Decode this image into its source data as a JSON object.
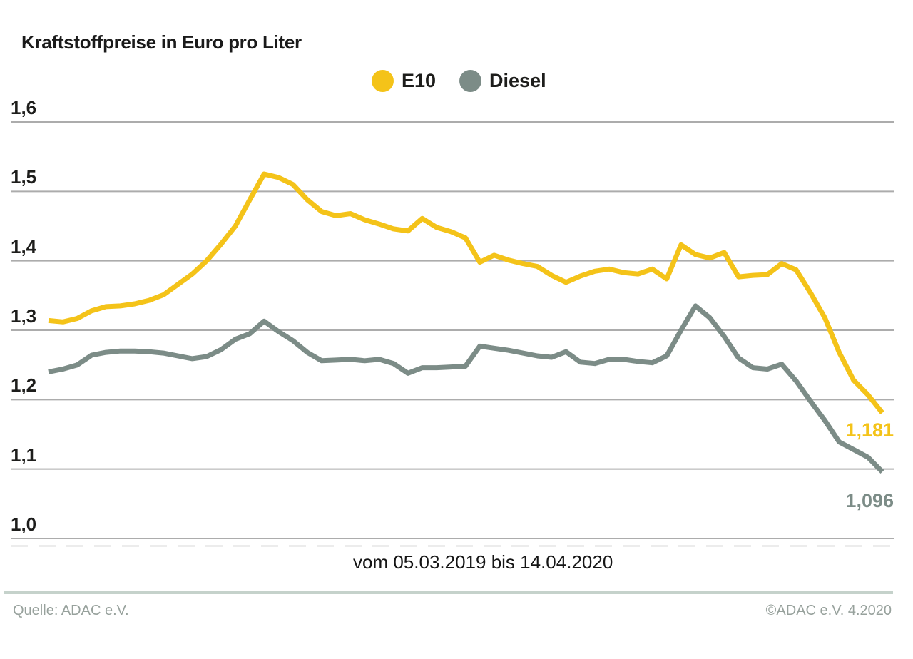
{
  "title": "Kraftstoffpreise in Euro pro Liter",
  "caption": "vom 05.03.2019 bis 14.04.2020",
  "footer": {
    "source": "Quelle: ADAC e.V.",
    "copyright": "©ADAC e.V. 4.2020"
  },
  "colors": {
    "e10": "#F4C319",
    "diesel": "#7C8C87",
    "gridline": "#ACACAC",
    "tick_dashes": "#E6E6E6",
    "text_dark": "#1d1d1b",
    "footer_bar": "#C5D2CB",
    "footer_text": "#97A19C",
    "background": "#FFFFFF"
  },
  "chart_data": {
    "type": "line",
    "title": "Kraftstoffpreise in Euro pro Liter",
    "xlabel": "vom 05.03.2019 bis 14.04.2020",
    "ylabel": "Euro pro Liter",
    "x_start": "05.03.2019",
    "x_end": "14.04.2020",
    "x_interval": "weekly",
    "ylim": [
      1.0,
      1.6
    ],
    "y_ticks": [
      "1,0",
      "1,1",
      "1,2",
      "1,3",
      "1,4",
      "1,5",
      "1,6"
    ],
    "y_tick_values": [
      1.0,
      1.1,
      1.2,
      1.3,
      1.4,
      1.5,
      1.6
    ],
    "grid": "horizontal",
    "legend_position": "top-center",
    "series": [
      {
        "name": "E10",
        "color": "#F4C319",
        "end_label": "1,181",
        "final_value": 1.181,
        "values": [
          1.314,
          1.312,
          1.317,
          1.328,
          1.334,
          1.335,
          1.338,
          1.343,
          1.351,
          1.366,
          1.381,
          1.4,
          1.424,
          1.45,
          1.488,
          1.525,
          1.52,
          1.51,
          1.488,
          1.471,
          1.465,
          1.468,
          1.459,
          1.453,
          1.446,
          1.443,
          1.461,
          1.448,
          1.442,
          1.433,
          1.398,
          1.408,
          1.401,
          1.396,
          1.392,
          1.379,
          1.369,
          1.378,
          1.385,
          1.388,
          1.383,
          1.381,
          1.388,
          1.374,
          1.423,
          1.409,
          1.404,
          1.412,
          1.377,
          1.379,
          1.38,
          1.396,
          1.387,
          1.354,
          1.318,
          1.268,
          1.228,
          1.207,
          1.181
        ]
      },
      {
        "name": "Diesel",
        "color": "#7C8C87",
        "end_label": "1,096",
        "final_value": 1.096,
        "values": [
          1.24,
          1.244,
          1.25,
          1.264,
          1.268,
          1.27,
          1.27,
          1.269,
          1.267,
          1.263,
          1.259,
          1.262,
          1.272,
          1.287,
          1.295,
          1.313,
          1.298,
          1.285,
          1.268,
          1.256,
          1.257,
          1.258,
          1.256,
          1.258,
          1.252,
          1.238,
          1.246,
          1.246,
          1.247,
          1.248,
          1.277,
          1.274,
          1.271,
          1.267,
          1.263,
          1.261,
          1.269,
          1.254,
          1.252,
          1.258,
          1.258,
          1.255,
          1.253,
          1.263,
          1.3,
          1.335,
          1.318,
          1.291,
          1.26,
          1.246,
          1.244,
          1.251,
          1.227,
          1.198,
          1.17,
          1.139,
          1.128,
          1.117,
          1.096
        ]
      }
    ]
  }
}
